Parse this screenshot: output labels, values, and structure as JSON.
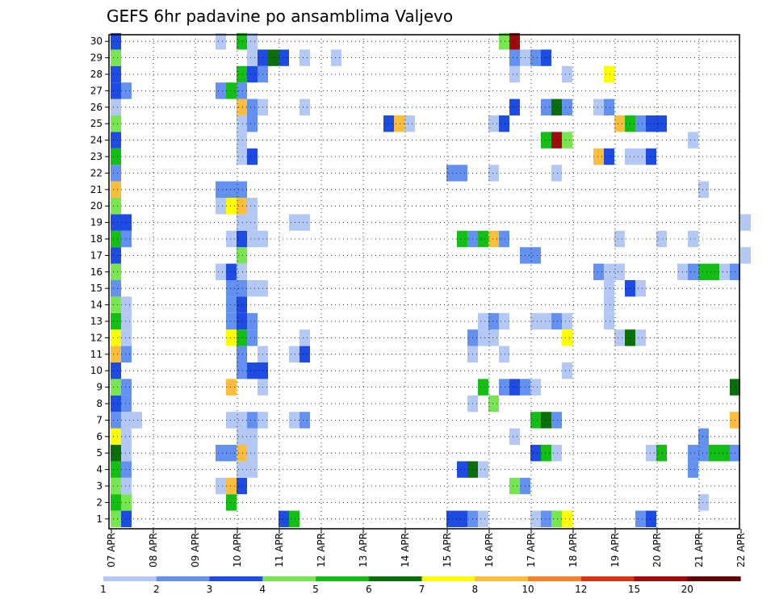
{
  "chart_data": {
    "type": "heatmap",
    "title": "GEFS 6hr padavine po ansamblima Valjevo",
    "xlabel": "",
    "ylabel": "",
    "x_ticks": [
      "07 APR",
      "08 APR",
      "09 APR",
      "10 APR",
      "11 APR",
      "12 APR",
      "13 APR",
      "14 APR",
      "15 APR",
      "16 APR",
      "17 APR",
      "18 APR",
      "19 APR",
      "20 APR",
      "21 APR",
      "22 APR"
    ],
    "x_unit": "6-hourly steps from 07 APR 00 UTC",
    "y_ticks": [
      1,
      2,
      3,
      4,
      5,
      6,
      7,
      8,
      9,
      10,
      11,
      12,
      13,
      14,
      15,
      16,
      17,
      18,
      19,
      20,
      21,
      22,
      23,
      24,
      25,
      26,
      27,
      28,
      29,
      30
    ],
    "ylim": [
      0,
      30
    ],
    "grid": true,
    "colorbar": {
      "labels": [
        "1",
        "2",
        "3",
        "4",
        "5",
        "6",
        "7",
        "8",
        "10",
        "12",
        "15",
        "20"
      ],
      "colors": [
        "#b4c8f5",
        "#6490f0",
        "#1e4be1",
        "#78e650",
        "#14be14",
        "#0a6e0a",
        "#ffff00",
        "#fabe3c",
        "#f58228",
        "#dc3214",
        "#a00a0a",
        "#640000"
      ]
    },
    "cells": [
      {
        "m": 1,
        "s": 0,
        "v": 4
      },
      {
        "m": 1,
        "s": 1,
        "v": 3
      },
      {
        "m": 1,
        "s": 16,
        "v": 3
      },
      {
        "m": 1,
        "s": 17,
        "v": 5
      },
      {
        "m": 1,
        "s": 32,
        "v": 3
      },
      {
        "m": 1,
        "s": 33,
        "v": 3
      },
      {
        "m": 1,
        "s": 34,
        "v": 2
      },
      {
        "m": 1,
        "s": 35,
        "v": 1
      },
      {
        "m": 1,
        "s": 40,
        "v": 1
      },
      {
        "m": 1,
        "s": 41,
        "v": 2
      },
      {
        "m": 1,
        "s": 42,
        "v": 4
      },
      {
        "m": 1,
        "s": 43,
        "v": 7
      },
      {
        "m": 1,
        "s": 50,
        "v": 2
      },
      {
        "m": 1,
        "s": 51,
        "v": 3
      },
      {
        "m": 2,
        "s": 0,
        "v": 5
      },
      {
        "m": 2,
        "s": 1,
        "v": 4
      },
      {
        "m": 2,
        "s": 11,
        "v": 5
      },
      {
        "m": 2,
        "s": 56,
        "v": 1
      },
      {
        "m": 3,
        "s": 0,
        "v": 4
      },
      {
        "m": 3,
        "s": 1,
        "v": 1
      },
      {
        "m": 3,
        "s": 10,
        "v": 1
      },
      {
        "m": 3,
        "s": 11,
        "v": 8
      },
      {
        "m": 3,
        "s": 12,
        "v": 3
      },
      {
        "m": 3,
        "s": 38,
        "v": 4
      },
      {
        "m": 3,
        "s": 39,
        "v": 2
      },
      {
        "m": 4,
        "s": 0,
        "v": 5
      },
      {
        "m": 4,
        "s": 1,
        "v": 2
      },
      {
        "m": 4,
        "s": 12,
        "v": 1
      },
      {
        "m": 4,
        "s": 13,
        "v": 1
      },
      {
        "m": 4,
        "s": 33,
        "v": 3
      },
      {
        "m": 4,
        "s": 34,
        "v": 6
      },
      {
        "m": 4,
        "s": 35,
        "v": 1
      },
      {
        "m": 4,
        "s": 55,
        "v": 2
      },
      {
        "m": 5,
        "s": 0,
        "v": 6
      },
      {
        "m": 5,
        "s": 1,
        "v": 1
      },
      {
        "m": 5,
        "s": 10,
        "v": 2
      },
      {
        "m": 5,
        "s": 11,
        "v": 2
      },
      {
        "m": 5,
        "s": 12,
        "v": 8
      },
      {
        "m": 5,
        "s": 13,
        "v": 1
      },
      {
        "m": 5,
        "s": 40,
        "v": 3
      },
      {
        "m": 5,
        "s": 41,
        "v": 5
      },
      {
        "m": 5,
        "s": 42,
        "v": 1
      },
      {
        "m": 5,
        "s": 51,
        "v": 1
      },
      {
        "m": 5,
        "s": 52,
        "v": 5
      },
      {
        "m": 5,
        "s": 55,
        "v": 2
      },
      {
        "m": 5,
        "s": 56,
        "v": 2
      },
      {
        "m": 5,
        "s": 57,
        "v": 5
      },
      {
        "m": 5,
        "s": 58,
        "v": 5
      },
      {
        "m": 5,
        "s": 59,
        "v": 2
      },
      {
        "m": 6,
        "s": 0,
        "v": 7
      },
      {
        "m": 6,
        "s": 1,
        "v": 1
      },
      {
        "m": 6,
        "s": 12,
        "v": 1
      },
      {
        "m": 6,
        "s": 13,
        "v": 1
      },
      {
        "m": 6,
        "s": 38,
        "v": 1
      },
      {
        "m": 6,
        "s": 56,
        "v": 2
      },
      {
        "m": 7,
        "s": 0,
        "v": 2
      },
      {
        "m": 7,
        "s": 1,
        "v": 1
      },
      {
        "m": 7,
        "s": 2,
        "v": 1
      },
      {
        "m": 7,
        "s": 11,
        "v": 1
      },
      {
        "m": 7,
        "s": 12,
        "v": 1
      },
      {
        "m": 7,
        "s": 13,
        "v": 2
      },
      {
        "m": 7,
        "s": 14,
        "v": 1
      },
      {
        "m": 7,
        "s": 17,
        "v": 1
      },
      {
        "m": 7,
        "s": 18,
        "v": 2
      },
      {
        "m": 7,
        "s": 40,
        "v": 5
      },
      {
        "m": 7,
        "s": 41,
        "v": 6
      },
      {
        "m": 7,
        "s": 42,
        "v": 2
      },
      {
        "m": 7,
        "s": 59,
        "v": 8
      },
      {
        "m": 8,
        "s": 0,
        "v": 3
      },
      {
        "m": 8,
        "s": 1,
        "v": 2
      },
      {
        "m": 8,
        "s": 34,
        "v": 1
      },
      {
        "m": 8,
        "s": 36,
        "v": 4
      },
      {
        "m": 9,
        "s": 0,
        "v": 4
      },
      {
        "m": 9,
        "s": 1,
        "v": 2
      },
      {
        "m": 9,
        "s": 11,
        "v": 8
      },
      {
        "m": 9,
        "s": 14,
        "v": 1
      },
      {
        "m": 9,
        "s": 35,
        "v": 5
      },
      {
        "m": 9,
        "s": 37,
        "v": 2
      },
      {
        "m": 9,
        "s": 38,
        "v": 3
      },
      {
        "m": 9,
        "s": 39,
        "v": 2
      },
      {
        "m": 9,
        "s": 40,
        "v": 1
      },
      {
        "m": 9,
        "s": 59,
        "v": 6
      },
      {
        "m": 10,
        "s": 0,
        "v": 3
      },
      {
        "m": 10,
        "s": 12,
        "v": 2
      },
      {
        "m": 10,
        "s": 13,
        "v": 3
      },
      {
        "m": 10,
        "s": 14,
        "v": 3
      },
      {
        "m": 10,
        "s": 43,
        "v": 1
      },
      {
        "m": 11,
        "s": 0,
        "v": 8
      },
      {
        "m": 11,
        "s": 1,
        "v": 2
      },
      {
        "m": 11,
        "s": 12,
        "v": 2
      },
      {
        "m": 11,
        "s": 14,
        "v": 1
      },
      {
        "m": 11,
        "s": 17,
        "v": 1
      },
      {
        "m": 11,
        "s": 18,
        "v": 3
      },
      {
        "m": 11,
        "s": 34,
        "v": 1
      },
      {
        "m": 11,
        "s": 37,
        "v": 1
      },
      {
        "m": 12,
        "s": 0,
        "v": 7
      },
      {
        "m": 12,
        "s": 1,
        "v": 1
      },
      {
        "m": 12,
        "s": 11,
        "v": 7
      },
      {
        "m": 12,
        "s": 12,
        "v": 5
      },
      {
        "m": 12,
        "s": 13,
        "v": 2
      },
      {
        "m": 12,
        "s": 18,
        "v": 1
      },
      {
        "m": 12,
        "s": 34,
        "v": 2
      },
      {
        "m": 12,
        "s": 35,
        "v": 1
      },
      {
        "m": 12,
        "s": 36,
        "v": 1
      },
      {
        "m": 12,
        "s": 43,
        "v": 7
      },
      {
        "m": 12,
        "s": 48,
        "v": 1
      },
      {
        "m": 12,
        "s": 49,
        "v": 6
      },
      {
        "m": 12,
        "s": 50,
        "v": 1
      },
      {
        "m": 13,
        "s": 0,
        "v": 5
      },
      {
        "m": 13,
        "s": 1,
        "v": 1
      },
      {
        "m": 13,
        "s": 11,
        "v": 2
      },
      {
        "m": 13,
        "s": 12,
        "v": 3
      },
      {
        "m": 13,
        "s": 13,
        "v": 2
      },
      {
        "m": 13,
        "s": 35,
        "v": 1
      },
      {
        "m": 13,
        "s": 36,
        "v": 2
      },
      {
        "m": 13,
        "s": 37,
        "v": 1
      },
      {
        "m": 13,
        "s": 40,
        "v": 1
      },
      {
        "m": 13,
        "s": 41,
        "v": 1
      },
      {
        "m": 13,
        "s": 42,
        "v": 2
      },
      {
        "m": 13,
        "s": 43,
        "v": 1
      },
      {
        "m": 13,
        "s": 47,
        "v": 1
      },
      {
        "m": 14,
        "s": 0,
        "v": 4
      },
      {
        "m": 14,
        "s": 1,
        "v": 1
      },
      {
        "m": 14,
        "s": 11,
        "v": 2
      },
      {
        "m": 14,
        "s": 12,
        "v": 3
      },
      {
        "m": 14,
        "s": 47,
        "v": 1
      },
      {
        "m": 15,
        "s": 0,
        "v": 2
      },
      {
        "m": 15,
        "s": 11,
        "v": 2
      },
      {
        "m": 15,
        "s": 12,
        "v": 2
      },
      {
        "m": 15,
        "s": 13,
        "v": 1
      },
      {
        "m": 15,
        "s": 14,
        "v": 1
      },
      {
        "m": 15,
        "s": 47,
        "v": 1
      },
      {
        "m": 15,
        "s": 49,
        "v": 3
      },
      {
        "m": 15,
        "s": 50,
        "v": 1
      },
      {
        "m": 16,
        "s": 0,
        "v": 4
      },
      {
        "m": 16,
        "s": 10,
        "v": 1
      },
      {
        "m": 16,
        "s": 11,
        "v": 3
      },
      {
        "m": 16,
        "s": 12,
        "v": 1
      },
      {
        "m": 16,
        "s": 46,
        "v": 2
      },
      {
        "m": 16,
        "s": 47,
        "v": 1
      },
      {
        "m": 16,
        "s": 48,
        "v": 1
      },
      {
        "m": 16,
        "s": 54,
        "v": 1
      },
      {
        "m": 16,
        "s": 55,
        "v": 2
      },
      {
        "m": 16,
        "s": 56,
        "v": 5
      },
      {
        "m": 16,
        "s": 57,
        "v": 5
      },
      {
        "m": 16,
        "s": 58,
        "v": 1
      },
      {
        "m": 16,
        "s": 59,
        "v": 2
      },
      {
        "m": 17,
        "s": 0,
        "v": 3
      },
      {
        "m": 17,
        "s": 12,
        "v": 4
      },
      {
        "m": 17,
        "s": 39,
        "v": 2
      },
      {
        "m": 17,
        "s": 40,
        "v": 2
      },
      {
        "m": 17,
        "s": 60,
        "v": 1
      },
      {
        "m": 18,
        "s": 0,
        "v": 5
      },
      {
        "m": 18,
        "s": 1,
        "v": 2
      },
      {
        "m": 18,
        "s": 11,
        "v": 1
      },
      {
        "m": 18,
        "s": 12,
        "v": 3
      },
      {
        "m": 18,
        "s": 13,
        "v": 1
      },
      {
        "m": 18,
        "s": 14,
        "v": 1
      },
      {
        "m": 18,
        "s": 33,
        "v": 5
      },
      {
        "m": 18,
        "s": 34,
        "v": 2
      },
      {
        "m": 18,
        "s": 35,
        "v": 5
      },
      {
        "m": 18,
        "s": 36,
        "v": 8
      },
      {
        "m": 18,
        "s": 37,
        "v": 2
      },
      {
        "m": 18,
        "s": 48,
        "v": 1
      },
      {
        "m": 18,
        "s": 52,
        "v": 1
      },
      {
        "m": 18,
        "s": 55,
        "v": 1
      },
      {
        "m": 19,
        "s": 0,
        "v": 3
      },
      {
        "m": 19,
        "s": 1,
        "v": 3
      },
      {
        "m": 19,
        "s": 12,
        "v": 1
      },
      {
        "m": 19,
        "s": 13,
        "v": 1
      },
      {
        "m": 19,
        "s": 17,
        "v": 1
      },
      {
        "m": 19,
        "s": 18,
        "v": 1
      },
      {
        "m": 19,
        "s": 60,
        "v": 1
      },
      {
        "m": 20,
        "s": 0,
        "v": 4
      },
      {
        "m": 20,
        "s": 10,
        "v": 1
      },
      {
        "m": 20,
        "s": 11,
        "v": 7
      },
      {
        "m": 20,
        "s": 12,
        "v": 8
      },
      {
        "m": 20,
        "s": 13,
        "v": 1
      },
      {
        "m": 21,
        "s": 0,
        "v": 8
      },
      {
        "m": 21,
        "s": 10,
        "v": 2
      },
      {
        "m": 21,
        "s": 11,
        "v": 2
      },
      {
        "m": 21,
        "s": 12,
        "v": 2
      },
      {
        "m": 21,
        "s": 56,
        "v": 1
      },
      {
        "m": 22,
        "s": 0,
        "v": 2
      },
      {
        "m": 22,
        "s": 32,
        "v": 2
      },
      {
        "m": 22,
        "s": 33,
        "v": 2
      },
      {
        "m": 22,
        "s": 36,
        "v": 1
      },
      {
        "m": 22,
        "s": 42,
        "v": 1
      },
      {
        "m": 23,
        "s": 0,
        "v": 5
      },
      {
        "m": 23,
        "s": 12,
        "v": 1
      },
      {
        "m": 23,
        "s": 13,
        "v": 3
      },
      {
        "m": 23,
        "s": 46,
        "v": 8
      },
      {
        "m": 23,
        "s": 47,
        "v": 3
      },
      {
        "m": 23,
        "s": 49,
        "v": 1
      },
      {
        "m": 23,
        "s": 50,
        "v": 1
      },
      {
        "m": 23,
        "s": 51,
        "v": 3
      },
      {
        "m": 24,
        "s": 0,
        "v": 3
      },
      {
        "m": 24,
        "s": 12,
        "v": 1
      },
      {
        "m": 24,
        "s": 41,
        "v": 5
      },
      {
        "m": 24,
        "s": 42,
        "v": 11
      },
      {
        "m": 24,
        "s": 43,
        "v": 4
      },
      {
        "m": 24,
        "s": 55,
        "v": 1
      },
      {
        "m": 25,
        "s": 0,
        "v": 4
      },
      {
        "m": 25,
        "s": 12,
        "v": 1
      },
      {
        "m": 25,
        "s": 13,
        "v": 2
      },
      {
        "m": 25,
        "s": 26,
        "v": 3
      },
      {
        "m": 25,
        "s": 27,
        "v": 8
      },
      {
        "m": 25,
        "s": 28,
        "v": 1
      },
      {
        "m": 25,
        "s": 36,
        "v": 1
      },
      {
        "m": 25,
        "s": 37,
        "v": 3
      },
      {
        "m": 25,
        "s": 48,
        "v": 8
      },
      {
        "m": 25,
        "s": 49,
        "v": 5
      },
      {
        "m": 25,
        "s": 50,
        "v": 2
      },
      {
        "m": 25,
        "s": 51,
        "v": 3
      },
      {
        "m": 25,
        "s": 52,
        "v": 3
      },
      {
        "m": 26,
        "s": 0,
        "v": 1
      },
      {
        "m": 26,
        "s": 12,
        "v": 8
      },
      {
        "m": 26,
        "s": 13,
        "v": 2
      },
      {
        "m": 26,
        "s": 14,
        "v": 1
      },
      {
        "m": 26,
        "s": 18,
        "v": 1
      },
      {
        "m": 26,
        "s": 38,
        "v": 3
      },
      {
        "m": 26,
        "s": 41,
        "v": 2
      },
      {
        "m": 26,
        "s": 42,
        "v": 6
      },
      {
        "m": 26,
        "s": 43,
        "v": 2
      },
      {
        "m": 26,
        "s": 46,
        "v": 1
      },
      {
        "m": 26,
        "s": 47,
        "v": 2
      },
      {
        "m": 27,
        "s": 0,
        "v": 3
      },
      {
        "m": 27,
        "s": 1,
        "v": 2
      },
      {
        "m": 27,
        "s": 10,
        "v": 2
      },
      {
        "m": 27,
        "s": 11,
        "v": 5
      },
      {
        "m": 27,
        "s": 12,
        "v": 2
      },
      {
        "m": 28,
        "s": 0,
        "v": 3
      },
      {
        "m": 28,
        "s": 12,
        "v": 5
      },
      {
        "m": 28,
        "s": 13,
        "v": 3
      },
      {
        "m": 28,
        "s": 14,
        "v": 2
      },
      {
        "m": 28,
        "s": 38,
        "v": 1
      },
      {
        "m": 28,
        "s": 43,
        "v": 1
      },
      {
        "m": 28,
        "s": 47,
        "v": 7
      },
      {
        "m": 29,
        "s": 0,
        "v": 4
      },
      {
        "m": 29,
        "s": 13,
        "v": 1
      },
      {
        "m": 29,
        "s": 14,
        "v": 3
      },
      {
        "m": 29,
        "s": 15,
        "v": 6
      },
      {
        "m": 29,
        "s": 16,
        "v": 3
      },
      {
        "m": 29,
        "s": 18,
        "v": 1
      },
      {
        "m": 29,
        "s": 21,
        "v": 1
      },
      {
        "m": 29,
        "s": 38,
        "v": 2
      },
      {
        "m": 29,
        "s": 39,
        "v": 1
      },
      {
        "m": 29,
        "s": 40,
        "v": 2
      },
      {
        "m": 29,
        "s": 41,
        "v": 3
      },
      {
        "m": 30,
        "s": 0,
        "v": 3
      },
      {
        "m": 30,
        "s": 10,
        "v": 1
      },
      {
        "m": 30,
        "s": 12,
        "v": 5
      },
      {
        "m": 30,
        "s": 13,
        "v": 1
      },
      {
        "m": 30,
        "s": 37,
        "v": 4
      },
      {
        "m": 30,
        "s": 38,
        "v": 11
      }
    ]
  }
}
